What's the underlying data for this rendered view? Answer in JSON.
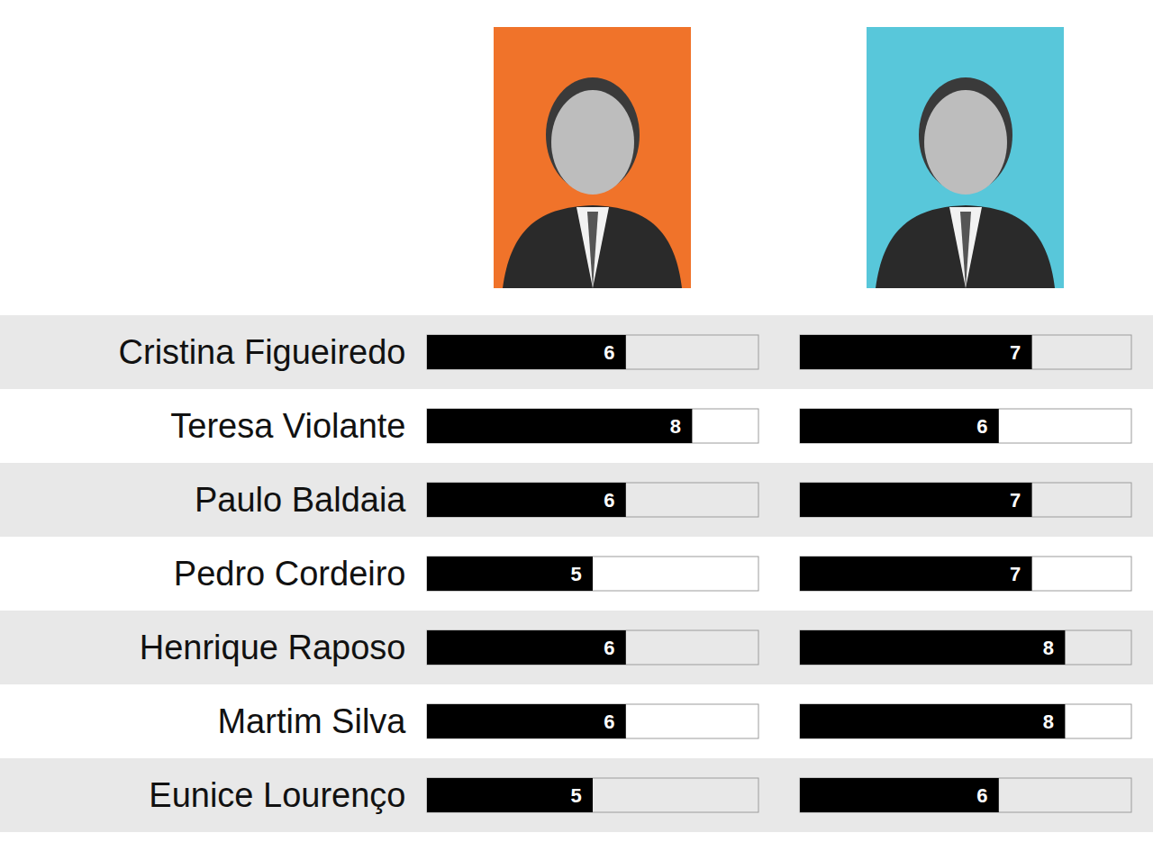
{
  "chart_data": {
    "type": "bar",
    "orientation": "horizontal",
    "data_labels": true,
    "tick_labels": "y",
    "grid": false,
    "categories": [
      "Cristina Figueiredo",
      "Teresa Violante",
      "Paulo Baldaia",
      "Pedro Cordeiro",
      "Henrique Raposo",
      "Martim Silva",
      "Eunice Lourenço"
    ],
    "xlim": [
      0,
      10
    ],
    "series": [
      {
        "color": "#000000",
        "values": [
          6,
          8,
          6,
          5,
          6,
          6,
          5
        ]
      },
      {
        "color": "#000000",
        "values": [
          7,
          6,
          7,
          7,
          8,
          8,
          6
        ]
      }
    ]
  }
}
